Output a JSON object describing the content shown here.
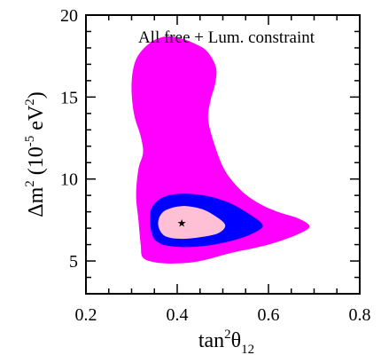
{
  "chart_data": {
    "type": "contour",
    "annotation": "All free + Lum. constraint",
    "xlabel": {
      "base": "tan",
      "sup": "2",
      "symbol": "θ",
      "sub": "12"
    },
    "ylabel": {
      "prefix": "Δm",
      "sup": "2",
      "mid": " (10",
      "exp": "-5",
      "unit": " eV",
      "unit_sup": "2",
      "close": ")"
    },
    "xlim": [
      0.2,
      0.8
    ],
    "ylim": [
      3,
      20
    ],
    "xticks": [
      0.2,
      0.4,
      0.6,
      0.8
    ],
    "xtick_labels": [
      "0.2",
      "0.4",
      "0.6",
      "0.8"
    ],
    "yticks": [
      5,
      10,
      15,
      20
    ],
    "ytick_labels": [
      "5",
      "10",
      "15",
      "20"
    ],
    "best_fit": {
      "x": 0.41,
      "y": 7.3,
      "marker": "★"
    },
    "regions": [
      {
        "level": "outer",
        "color": "#ff00ff",
        "points": [
          [
            0.325,
            5.2
          ],
          [
            0.32,
            6.0
          ],
          [
            0.315,
            7.5
          ],
          [
            0.31,
            9.0
          ],
          [
            0.315,
            10.6
          ],
          [
            0.325,
            11.6
          ],
          [
            0.32,
            12.6
          ],
          [
            0.305,
            14.0
          ],
          [
            0.3,
            15.8
          ],
          [
            0.31,
            17.3
          ],
          [
            0.34,
            18.3
          ],
          [
            0.375,
            18.7
          ],
          [
            0.405,
            18.6
          ],
          [
            0.435,
            18.3
          ],
          [
            0.465,
            17.8
          ],
          [
            0.485,
            16.8
          ],
          [
            0.483,
            15.8
          ],
          [
            0.473,
            14.8
          ],
          [
            0.468,
            13.6
          ],
          [
            0.483,
            12.0
          ],
          [
            0.505,
            10.5
          ],
          [
            0.54,
            9.3
          ],
          [
            0.58,
            8.5
          ],
          [
            0.62,
            8.0
          ],
          [
            0.665,
            7.6
          ],
          [
            0.69,
            7.1
          ],
          [
            0.662,
            6.6
          ],
          [
            0.6,
            6.0
          ],
          [
            0.52,
            5.5
          ],
          [
            0.45,
            5.0
          ],
          [
            0.4,
            4.85
          ],
          [
            0.355,
            4.9
          ]
        ]
      },
      {
        "level": "middle",
        "color": "#0000ff",
        "points": [
          [
            0.345,
            6.6
          ],
          [
            0.34,
            7.5
          ],
          [
            0.345,
            8.3
          ],
          [
            0.37,
            8.9
          ],
          [
            0.41,
            9.1
          ],
          [
            0.46,
            9.0
          ],
          [
            0.51,
            8.6
          ],
          [
            0.55,
            8.0
          ],
          [
            0.585,
            7.3
          ],
          [
            0.58,
            6.9
          ],
          [
            0.54,
            6.4
          ],
          [
            0.48,
            6.0
          ],
          [
            0.42,
            5.85
          ],
          [
            0.375,
            5.95
          ],
          [
            0.355,
            6.2
          ]
        ]
      },
      {
        "level": "inner",
        "color": "#ffc0d6",
        "points": [
          [
            0.36,
            7.0
          ],
          [
            0.36,
            7.6
          ],
          [
            0.375,
            8.1
          ],
          [
            0.41,
            8.35
          ],
          [
            0.45,
            8.2
          ],
          [
            0.48,
            7.8
          ],
          [
            0.505,
            7.2
          ],
          [
            0.49,
            6.7
          ],
          [
            0.45,
            6.45
          ],
          [
            0.41,
            6.35
          ],
          [
            0.375,
            6.5
          ]
        ]
      }
    ]
  }
}
